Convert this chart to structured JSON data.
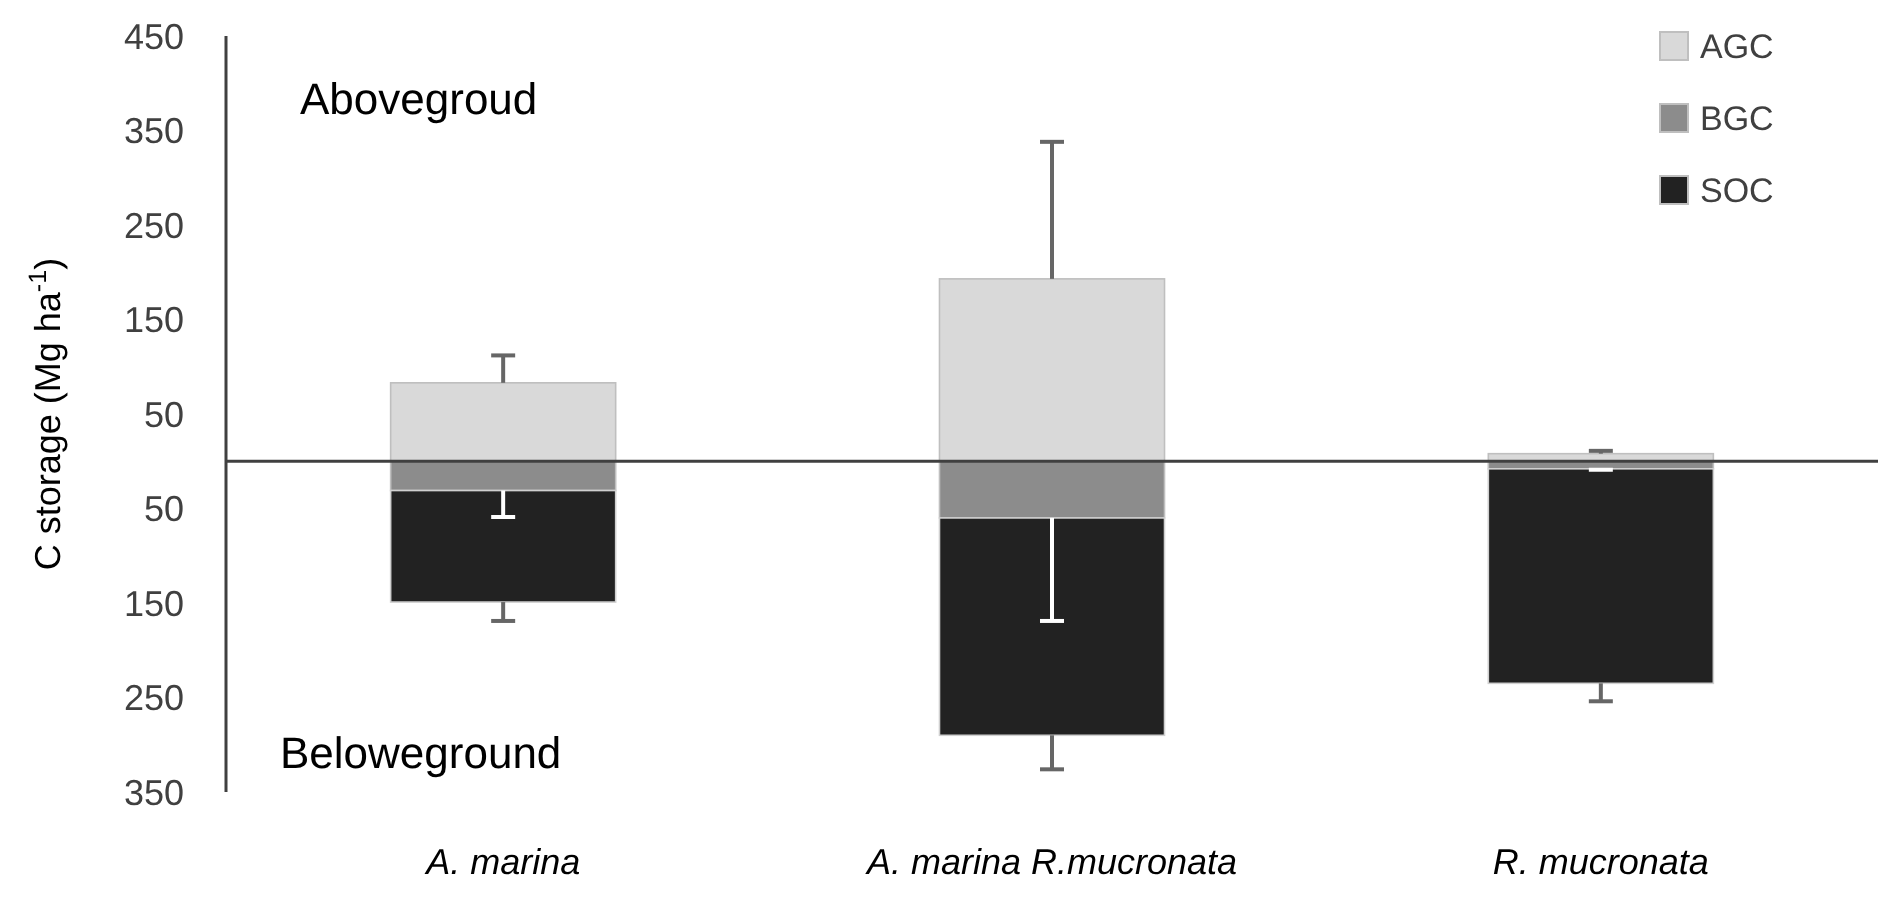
{
  "chart_data": {
    "type": "bar",
    "stacked": true,
    "ylabel": "C storage (Mg ha$^{-1}$)",
    "categories": [
      "A. marina",
      "A. marina R.mucronata",
      "R. mucronata"
    ],
    "series": [
      {
        "name": "AGC",
        "color": "#d9d9d9",
        "values": [
          83,
          193,
          8
        ],
        "errors": [
          [
            83,
            112
          ],
          [
            193,
            338
          ],
          [
            8,
            11
          ]
        ]
      },
      {
        "name": "BGC",
        "color": "#8c8c8c",
        "values": [
          -31,
          -60,
          -8
        ],
        "errors": [
          [
            -59,
            -31
          ],
          [
            -169,
            -60
          ],
          [
            -9,
            -8
          ]
        ]
      },
      {
        "name": "SOC",
        "color": "#222222",
        "values": [
          -118,
          -230,
          -227
        ],
        "errors": [
          [
            -169,
            -149
          ],
          [
            -326,
            -290
          ],
          [
            -254,
            -235
          ]
        ]
      }
    ],
    "ylim": [
      -350,
      450
    ],
    "yticks": [
      {
        "value": -350,
        "label": "350"
      },
      {
        "value": -250,
        "label": "250"
      },
      {
        "value": -150,
        "label": "150"
      },
      {
        "value": -50,
        "label": "50"
      },
      50,
      150,
      250,
      350,
      450
    ],
    "annotations": [
      "Abovegroud",
      "Beloweground"
    ],
    "legend": "top right",
    "grid": false
  }
}
